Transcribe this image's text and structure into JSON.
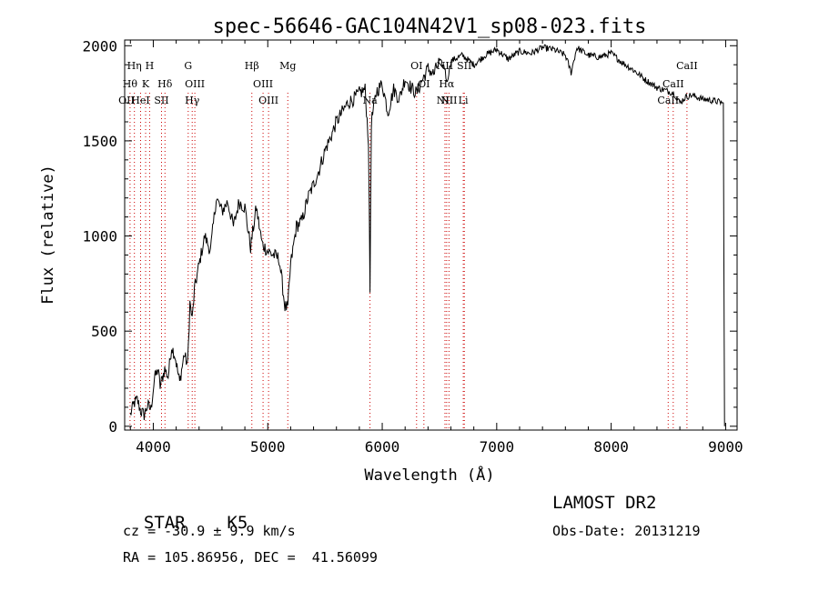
{
  "chart_data": {
    "type": "line",
    "title": "spec-56646-GAC104N42V1_sp08-023.fits",
    "xlabel": "Wavelength (Å)",
    "ylabel": "Flux (relative)",
    "xlim": [
      3750,
      9100
    ],
    "ylim": [
      -20,
      2030
    ],
    "xticks": [
      4000,
      5000,
      6000,
      7000,
      8000,
      9000
    ],
    "yticks": [
      0,
      500,
      1000,
      1500,
      2000
    ],
    "series": [
      {
        "x": [
          3800,
          3830,
          3860,
          3890,
          3920,
          3950,
          3980,
          4010,
          4040,
          4060,
          4100,
          4130,
          4160,
          4190,
          4230,
          4270,
          4300,
          4320,
          4340,
          4360,
          4400,
          4450,
          4500,
          4550,
          4600,
          4650,
          4700,
          4750,
          4800,
          4850,
          4900,
          4950,
          5000,
          5050,
          5100,
          5150,
          5175,
          5200,
          5250,
          5300,
          5350,
          5400,
          5450,
          5500,
          5550,
          5600,
          5650,
          5700,
          5750,
          5800,
          5850,
          5880,
          5893,
          5905,
          5950,
          6000,
          6050,
          6100,
          6150,
          6200,
          6250,
          6300,
          6350,
          6400,
          6450,
          6500,
          6550,
          6563,
          6600,
          6700,
          6800,
          6900,
          7000,
          7100,
          7200,
          7300,
          7400,
          7500,
          7600,
          7650,
          7700,
          7800,
          7900,
          8000,
          8100,
          8200,
          8300,
          8400,
          8500,
          8550,
          8600,
          8650,
          8700,
          8800,
          8900,
          8980,
          8990
        ],
        "values": [
          60,
          120,
          140,
          80,
          60,
          110,
          90,
          250,
          300,
          210,
          300,
          260,
          420,
          370,
          230,
          380,
          320,
          650,
          560,
          720,
          850,
          1000,
          920,
          1200,
          1130,
          1180,
          1050,
          1180,
          1150,
          940,
          1150,
          960,
          920,
          900,
          880,
          630,
          620,
          850,
          1050,
          1080,
          1200,
          1270,
          1350,
          1450,
          1520,
          1600,
          1650,
          1700,
          1720,
          1750,
          1770,
          1500,
          710,
          1600,
          1760,
          1800,
          1650,
          1770,
          1720,
          1830,
          1780,
          1750,
          1820,
          1880,
          1850,
          1920,
          1880,
          1800,
          1920,
          1950,
          1900,
          1950,
          1980,
          1930,
          1970,
          1960,
          1990,
          1980,
          1950,
          1860,
          1990,
          1950,
          1940,
          1960,
          1910,
          1870,
          1820,
          1780,
          1760,
          1750,
          1700,
          1730,
          1740,
          1720,
          1710,
          1700,
          0
        ]
      }
    ],
    "spectral_lines": [
      {
        "label": "Hη",
        "x": 3835
      },
      {
        "label": "H",
        "x": 3968
      },
      {
        "label": "Hθ",
        "x": 3797
      },
      {
        "label": "K",
        "x": 3933
      },
      {
        "label": "Hδ",
        "x": 4102
      },
      {
        "label": "OII",
        "x": 3727
      },
      {
        "label": "HeI",
        "x": 3889
      },
      {
        "label": "SII",
        "x": 4072
      },
      {
        "label": "G",
        "x": 4305
      },
      {
        "label": "OIII",
        "x": 4363
      },
      {
        "label": "Hγ",
        "x": 4340
      },
      {
        "label": "Hβ",
        "x": 4861
      },
      {
        "label": "OIII",
        "x": 4959
      },
      {
        "label": "OIII",
        "x": 5007
      },
      {
        "label": "Mg",
        "x": 5175
      },
      {
        "label": "Na",
        "x": 5893
      },
      {
        "label": "OI",
        "x": 6300
      },
      {
        "label": "OI",
        "x": 6364
      },
      {
        "label": "NII",
        "x": 6548
      },
      {
        "label": "SII",
        "x": 6717
      },
      {
        "label": "Hα",
        "x": 6563
      },
      {
        "label": "NII",
        "x": 6583
      },
      {
        "label": "NII",
        "x": 6548
      },
      {
        "label": "Li",
        "x": 6708
      },
      {
        "label": "CaII",
        "x": 8662
      },
      {
        "label": "CaII",
        "x": 8542
      },
      {
        "label": "CaII",
        "x": 8498
      }
    ],
    "grid": false,
    "legend": "none"
  },
  "info": {
    "object_class": "STAR",
    "subclass": "K5",
    "survey": "LAMOST DR2",
    "redshift": "cz = -30.9 ± 9.9 km/s",
    "obs_date": "Obs-Date: 20131219",
    "coords": "RA = 105.86956, DEC =  41.56099"
  },
  "colors": {
    "line_marker": "#cc0000",
    "spectrum": "#000000"
  }
}
